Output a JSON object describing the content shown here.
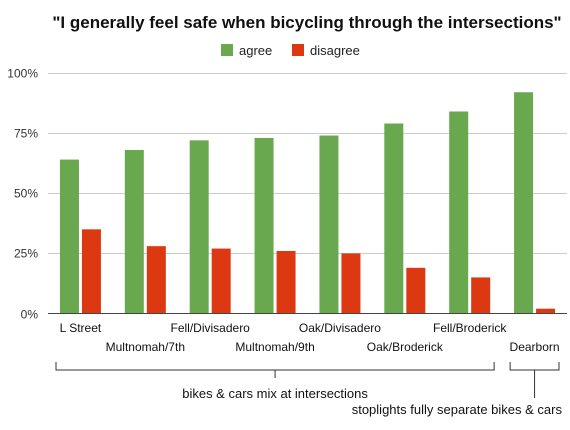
{
  "chart_data": {
    "type": "bar",
    "title": "\"I generally feel safe when bicycling through the intersections\"",
    "categories": [
      "L Street",
      "Multnomah/7th",
      "Fell/Divisadero",
      "Multnomah/9th",
      "Oak/Divisadero",
      "Oak/Broderick",
      "Fell/Broderick",
      "Dearborn"
    ],
    "series": [
      {
        "name": "agree",
        "color": "#6aa84f",
        "values": [
          64,
          68,
          72,
          73,
          74,
          79,
          84,
          92
        ]
      },
      {
        "name": "disagree",
        "color": "#dc3912",
        "values": [
          35,
          28,
          27,
          26,
          25,
          19,
          15,
          2
        ]
      }
    ],
    "ylim": [
      0,
      100
    ],
    "yticks": [
      "0%",
      "25%",
      "50%",
      "75%",
      "100%"
    ],
    "ytick_values": [
      0,
      25,
      50,
      75,
      100
    ],
    "grid": true,
    "legend_position": "top-center",
    "annotations": [
      {
        "text": "bikes & cars mix at intersections",
        "categories": [
          0,
          6
        ]
      },
      {
        "text": "stoplights fully separate bikes & cars",
        "categories": [
          7,
          7
        ]
      }
    ]
  }
}
